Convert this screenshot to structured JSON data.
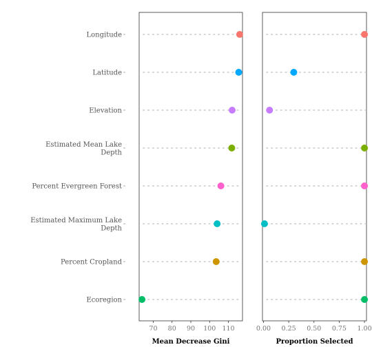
{
  "chart_data": {
    "type": "scatter",
    "categories": [
      [
        "Longitude"
      ],
      [
        "Latitude"
      ],
      [
        "Elevation"
      ],
      [
        "Estimated Mean Lake",
        "Depth"
      ],
      [
        "Percent Evergreen Forest"
      ],
      [
        "Estimated Maximum Lake",
        "Depth"
      ],
      [
        "Percent Cropland"
      ],
      [
        "Ecoregion"
      ]
    ],
    "colors": [
      "#f8766d",
      "#00a9ff",
      "#c77cff",
      "#7cae00",
      "#ff61cc",
      "#00bfc4",
      "#cd9600",
      "#00be67"
    ],
    "panels": [
      {
        "xlabel": "Mean Decrease Gini",
        "xlim": [
          62.5,
          117.5
        ],
        "ticks": [
          70,
          80,
          90,
          100,
          110
        ],
        "tick_labels": [
          "70",
          "80",
          "90",
          "100",
          "110"
        ],
        "values": [
          116,
          115.5,
          112,
          111.8,
          106,
          104,
          103.5,
          64
        ]
      },
      {
        "xlabel": "Proportion Selected",
        "xlim": [
          -0.01,
          1.02
        ],
        "ticks": [
          0,
          0.25,
          0.5,
          0.75,
          1.0
        ],
        "tick_labels": [
          "0.00",
          "0.25",
          "0.50",
          "0.75",
          "1.00"
        ],
        "values": [
          1.0,
          0.3,
          0.06,
          1.0,
          1.0,
          0.01,
          1.0,
          1.0
        ]
      }
    ]
  }
}
